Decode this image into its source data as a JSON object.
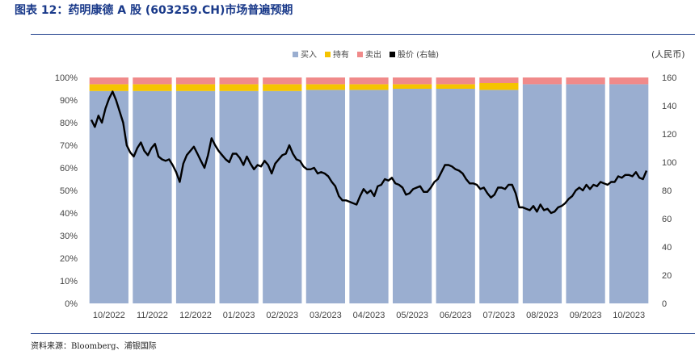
{
  "figure": {
    "title": "图表  12：药明康德 A 股  (603259.CH)市场普遍预期",
    "source": "资料来源：Bloomberg、浦银国际",
    "right_axis_unit": "(人民币)"
  },
  "chart_data": {
    "type": "bar",
    "stacked": true,
    "categories": [
      "10/2022",
      "11/2022",
      "12/2022",
      "01/2023",
      "02/2023",
      "03/2023",
      "04/2023",
      "05/2023",
      "06/2023",
      "07/2023",
      "08/2023",
      "09/2023",
      "10/2023"
    ],
    "series": [
      {
        "name": "买入",
        "color": "#9aaed0",
        "values": [
          94,
          94,
          94,
          94,
          94,
          94.5,
          94.5,
          95,
          95,
          94.5,
          97,
          97,
          97
        ]
      },
      {
        "name": "持有",
        "color": "#f5c400",
        "values": [
          3,
          3,
          3,
          3,
          3,
          2.5,
          2.5,
          2,
          2,
          3,
          0,
          0,
          0
        ]
      },
      {
        "name": "卖出",
        "color": "#f08a8a",
        "values": [
          3,
          3,
          3,
          3,
          3,
          3,
          3,
          3,
          3,
          2.5,
          3,
          3,
          3
        ]
      }
    ],
    "line_series": {
      "name": "股价 (右轴)",
      "color": "#000000",
      "axis": "right",
      "values": [
        130,
        125,
        133,
        128,
        138,
        145,
        150,
        144,
        136,
        128,
        112,
        107,
        104,
        110,
        114,
        108,
        105,
        110,
        113,
        104,
        102,
        101,
        102,
        98,
        93,
        86,
        99,
        105,
        108,
        111,
        106,
        101,
        96,
        105,
        117,
        112,
        108,
        105,
        102,
        100,
        106,
        106,
        103,
        98,
        104,
        99,
        95,
        98,
        97,
        101,
        98,
        92,
        99,
        102,
        105,
        106,
        112,
        106,
        102,
        101,
        97,
        95,
        95,
        96,
        92,
        93,
        92,
        90,
        86,
        83,
        76,
        73,
        73,
        72,
        71,
        70,
        76,
        81,
        78,
        80,
        76,
        83,
        84,
        88,
        87,
        89,
        85,
        84,
        82,
        77,
        78,
        81,
        82,
        83,
        79,
        79,
        82,
        86,
        88,
        93,
        98,
        98,
        97,
        95,
        94,
        92,
        88,
        85,
        85,
        84,
        81,
        82,
        78,
        75,
        77,
        82,
        82,
        81,
        84,
        84,
        78,
        68,
        68,
        67,
        66,
        69,
        65,
        70,
        66,
        67,
        64,
        65,
        68,
        69,
        71,
        74,
        76,
        80,
        82,
        80,
        84,
        81,
        84,
        83,
        86,
        85,
        84,
        86,
        86,
        90,
        89,
        91,
        91,
        90,
        93,
        89,
        88,
        94
      ],
      "ylim": [
        0,
        160
      ],
      "ticks": [
        0,
        20,
        40,
        60,
        80,
        100,
        120,
        140,
        160
      ]
    },
    "left_axis": {
      "ylim": [
        0,
        100
      ],
      "ticks": [
        "0%",
        "10%",
        "20%",
        "30%",
        "40%",
        "50%",
        "60%",
        "70%",
        "80%",
        "90%",
        "100%"
      ]
    },
    "legend_position": "top",
    "grid": false
  }
}
